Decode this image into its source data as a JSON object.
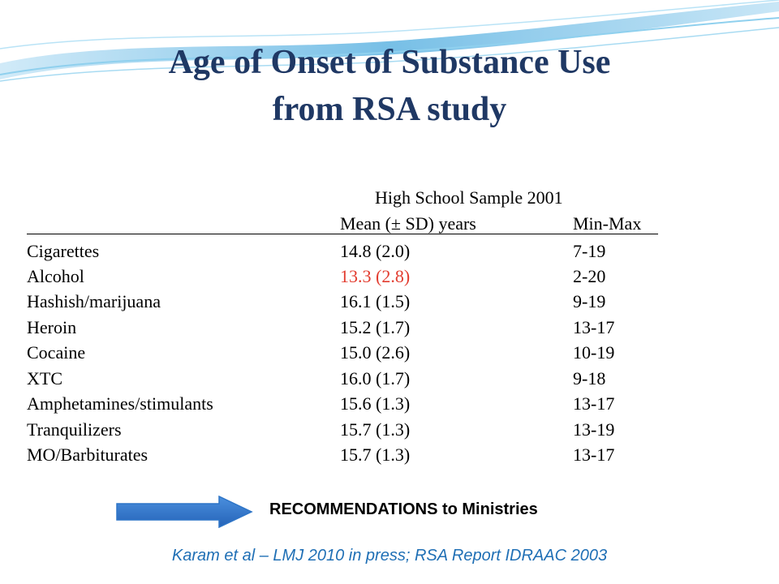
{
  "slide": {
    "title_line1": "Age of Onset of Substance Use",
    "title_line2": "from RSA study",
    "colors": {
      "title": "#1f3864",
      "highlight": "#e23b2e",
      "citation": "#1f6fb5",
      "arrow": "#2e75c7"
    }
  },
  "table": {
    "sample_header": "High School Sample 2001",
    "col_mean": "Mean (± SD) years",
    "col_minmax": "Min-Max",
    "rows": [
      {
        "name": "Cigarettes",
        "mean": "14.8 (2.0)",
        "range": "7-19"
      },
      {
        "name": "Alcohol",
        "mean": "13.3 (2.8)",
        "range": "2-20",
        "highlight": true
      },
      {
        "name": "Hashish/marijuana",
        "mean": "16.1 (1.5)",
        "range": "9-19"
      },
      {
        "name": "Heroin",
        "mean": "15.2 (1.7)",
        "range": "13-17"
      },
      {
        "name": "Cocaine",
        "mean": "15.0 (2.6)",
        "range": "10-19"
      },
      {
        "name": "XTC",
        "mean": "16.0 (1.7)",
        "range": "9-18"
      },
      {
        "name": "Amphetamines/stimulants",
        "mean": "15.6 (1.3)",
        "range": "13-17"
      },
      {
        "name": "Tranquilizers",
        "mean": "15.7 (1.3)",
        "range": "13-19"
      },
      {
        "name": "MO/Barbiturates",
        "mean": "15.7 (1.3)",
        "range": "13-17"
      }
    ]
  },
  "recommendation": {
    "arrow_icon": "right-arrow-icon",
    "text": "RECOMMENDATIONS to Ministries"
  },
  "citation": "Karam et al – LMJ 2010 in press; RSA Report IDRAAC  2003"
}
